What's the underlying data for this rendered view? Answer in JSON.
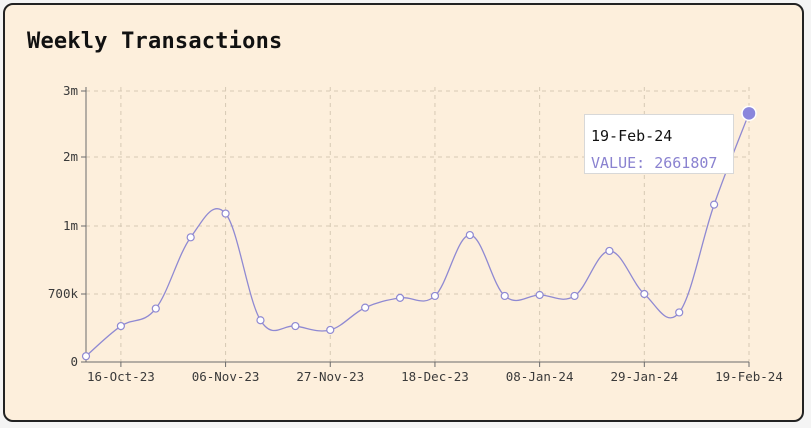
{
  "chart_data": {
    "type": "line",
    "title": "Weekly Transactions",
    "xlabel": "",
    "ylabel": "",
    "grid": true,
    "colors": {
      "line": "#8f89d2",
      "point_fill": "#ffffff",
      "active_point": "#8a86dc",
      "grid": "#d6c9b4",
      "axis": "#6b6b6b",
      "background": "#fdefdc"
    },
    "y_ticks": [
      {
        "value": 0,
        "label": "0"
      },
      {
        "value": 700000,
        "label": "700k"
      },
      {
        "value": 1000000,
        "label": "1m"
      },
      {
        "value": 2000000,
        "label": "2m"
      },
      {
        "value": 3000000,
        "label": "3m"
      }
    ],
    "x_ticks": [
      "16-Oct-23",
      "06-Nov-23",
      "27-Nov-23",
      "18-Dec-23",
      "08-Jan-24",
      "29-Jan-24",
      "19-Feb-24"
    ],
    "x": [
      "09-Oct-23",
      "16-Oct-23",
      "23-Oct-23",
      "30-Oct-23",
      "06-Nov-23",
      "13-Nov-23",
      "20-Nov-23",
      "27-Nov-23",
      "04-Dec-23",
      "11-Dec-23",
      "18-Dec-23",
      "25-Dec-23",
      "01-Jan-24",
      "08-Jan-24",
      "15-Jan-24",
      "22-Jan-24",
      "29-Jan-24",
      "05-Feb-24",
      "12-Feb-24",
      "19-Feb-24"
    ],
    "series": [
      {
        "name": "Transactions",
        "values": [
          60000,
          370000,
          550000,
          950000,
          1180000,
          430000,
          370000,
          330000,
          560000,
          660000,
          680000,
          960000,
          680000,
          690000,
          680000,
          890000,
          700000,
          510000,
          1310000,
          2661807
        ]
      }
    ],
    "tooltip": {
      "label": "19-Feb-24",
      "value_text": "VALUE: 2661807"
    }
  }
}
